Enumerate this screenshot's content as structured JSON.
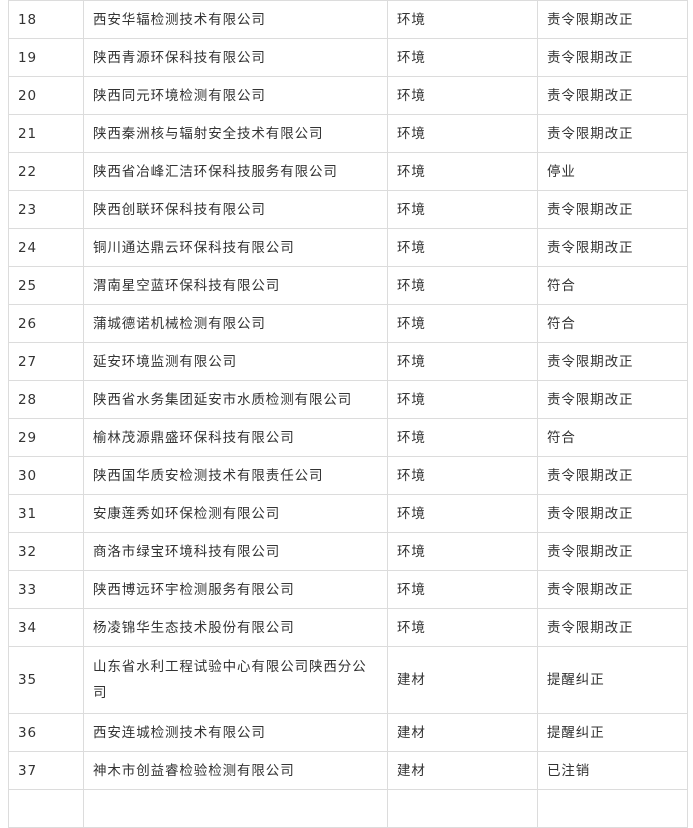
{
  "rows": [
    {
      "no": "18",
      "name": "西安华辐检测技术有限公司",
      "field": "环境",
      "result": "责令限期改正"
    },
    {
      "no": "19",
      "name": "陕西青源环保科技有限公司",
      "field": "环境",
      "result": "责令限期改正"
    },
    {
      "no": "20",
      "name": "陕西同元环境检测有限公司",
      "field": "环境",
      "result": "责令限期改正"
    },
    {
      "no": "21",
      "name": "陕西秦洲核与辐射安全技术有限公司",
      "field": "环境",
      "result": "责令限期改正"
    },
    {
      "no": "22",
      "name": "陕西省冶峰汇洁环保科技服务有限公司",
      "field": "环境",
      "result": "停业"
    },
    {
      "no": "23",
      "name": "陕西创联环保科技有限公司",
      "field": "环境",
      "result": "责令限期改正"
    },
    {
      "no": "24",
      "name": "铜川通达鼎云环保科技有限公司",
      "field": "环境",
      "result": "责令限期改正"
    },
    {
      "no": "25",
      "name": "渭南星空蓝环保科技有限公司",
      "field": "环境",
      "result": "符合"
    },
    {
      "no": "26",
      "name": "蒲城德诺机械检测有限公司",
      "field": "环境",
      "result": "符合"
    },
    {
      "no": "27",
      "name": "延安环境监测有限公司",
      "field": "环境",
      "result": "责令限期改正"
    },
    {
      "no": "28",
      "name": "陕西省水务集团延安市水质检测有限公司",
      "field": "环境",
      "result": "责令限期改正"
    },
    {
      "no": "29",
      "name": "榆林茂源鼎盛环保科技有限公司",
      "field": "环境",
      "result": "符合"
    },
    {
      "no": "30",
      "name": "陕西国华质安检测技术有限责任公司",
      "field": "环境",
      "result": "责令限期改正"
    },
    {
      "no": "31",
      "name": "安康莲秀如环保检测有限公司",
      "field": "环境",
      "result": "责令限期改正"
    },
    {
      "no": "32",
      "name": "商洛市绿宝环境科技有限公司",
      "field": "环境",
      "result": "责令限期改正"
    },
    {
      "no": "33",
      "name": "陕西博远环宇检测服务有限公司",
      "field": "环境",
      "result": "责令限期改正"
    },
    {
      "no": "34",
      "name": "杨凌锦华生态技术股份有限公司",
      "field": "环境",
      "result": "责令限期改正"
    },
    {
      "no": "35",
      "name": "山东省水利工程试验中心有限公司陕西分公司",
      "field": "建材",
      "result": "提醒纠正"
    },
    {
      "no": "36",
      "name": "西安连城检测技术有限公司",
      "field": "建材",
      "result": "提醒纠正"
    },
    {
      "no": "37",
      "name": "神木市创益睿检验检测有限公司",
      "field": "建材",
      "result": "已注销"
    },
    {
      "no": "",
      "name": "",
      "field": "",
      "result": ""
    }
  ]
}
